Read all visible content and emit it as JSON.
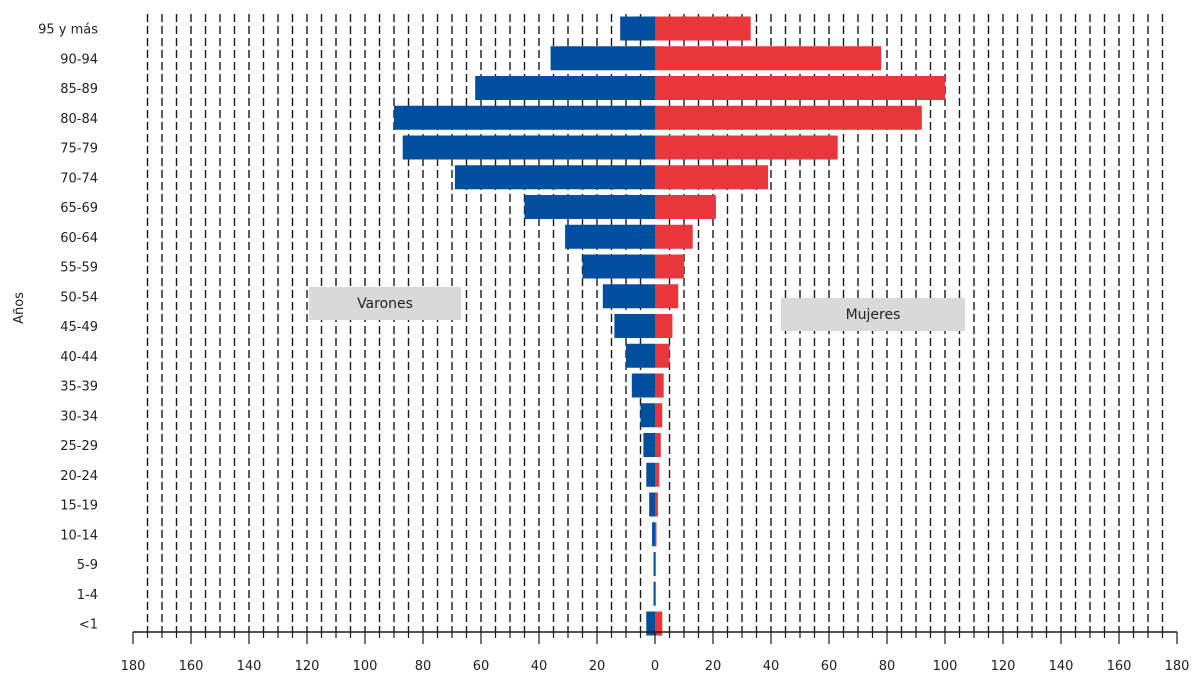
{
  "chart_data": {
    "type": "bar",
    "orientation": "horizontal",
    "ylabel": "Años",
    "categories": [
      "95 y más",
      "90-94",
      "85-89",
      "80-84",
      "75-79",
      "70-74",
      "65-69",
      "60-64",
      "55-59",
      "50-54",
      "45-49",
      "40-44",
      "35-39",
      "30-34",
      "25-29",
      "20-24",
      "15-19",
      "10-14",
      "5-9",
      "1-4",
      "<1"
    ],
    "series": [
      {
        "name": "Varones",
        "color": "#004f9f",
        "side": "left",
        "values": [
          12,
          36,
          62,
          90,
          87,
          69,
          45,
          31,
          25,
          18,
          14,
          10,
          8,
          5,
          4,
          3,
          2,
          1,
          0.5,
          0.5,
          3
        ]
      },
      {
        "name": "Mujeres",
        "color": "#e8363c",
        "side": "right",
        "values": [
          33,
          78,
          100,
          92,
          63,
          39,
          21,
          13,
          10,
          8,
          6,
          5,
          3,
          2.5,
          2,
          1.5,
          1,
          0.5,
          0.3,
          0.3,
          2.5
        ]
      }
    ],
    "xlim": [
      -180,
      180
    ],
    "xticks": [
      -180,
      -160,
      -140,
      -120,
      -100,
      -80,
      -60,
      -40,
      -20,
      0,
      20,
      40,
      60,
      80,
      100,
      120,
      140,
      160,
      180
    ],
    "xtick_labels": [
      "180",
      "160",
      "140",
      "120",
      "100",
      "80",
      "60",
      "40",
      "20",
      "0",
      "20",
      "40",
      "60",
      "80",
      "100",
      "120",
      "140",
      "160",
      "180"
    ],
    "grid": true,
    "grid_style": "dashed vertical every 5 units"
  },
  "legend": {
    "left_label": "Varones",
    "right_label": "Mujeres",
    "box_color": "#d9d9d9"
  },
  "axis": {
    "y_title": "Años"
  }
}
